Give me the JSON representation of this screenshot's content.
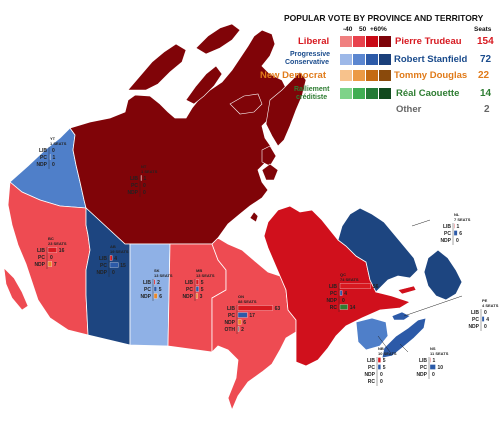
{
  "legend": {
    "title": "POPULAR VOTE BY PROVINCE AND TERRITORY",
    "scale_labels": [
      "-40",
      "50",
      "+60%"
    ],
    "seats_label": "Seats",
    "parties": [
      {
        "name": "Liberal",
        "leader": "Pierre Trudeau",
        "seats": "154",
        "color": "#c80815",
        "text_color": "#d71920",
        "swatches": [
          "#f08080",
          "#e8414c",
          "#c80815",
          "#7d0309"
        ]
      },
      {
        "name": "Progressive Conservative",
        "name_line1": "Progressive",
        "name_line2": "Conservative",
        "leader": "Robert Stanfield",
        "seats": "72",
        "color": "#1a3f7a",
        "text_color": "#1a4b8c",
        "swatches": [
          "#9db8e8",
          "#5b86d0",
          "#2c5aa8",
          "#1a3f7a"
        ]
      },
      {
        "name": "New Democrat",
        "leader": "Tommy Douglas",
        "seats": "22",
        "color": "#e07b1a",
        "text_color": "#e07b1a",
        "swatches": [
          "#f7c28c",
          "#ec9a45",
          "#c46a12",
          "#8a4a0c"
        ]
      },
      {
        "name": "Ralliement créditiste",
        "name_line1": "Ralliement",
        "name_line2": "créditiste",
        "leader": "Réal Caouette",
        "seats": "14",
        "color": "#2e7d32",
        "text_color": "#2e7d32",
        "swatches": [
          "#7ed389",
          "#3fae52",
          "#237a35",
          "#124a1e"
        ]
      },
      {
        "name": "Other",
        "seats": "2",
        "color": "#555555",
        "text_color": "#666666"
      }
    ]
  },
  "regions": [
    {
      "id": "yt",
      "name": "YT",
      "seats_label": "1\nSEATS",
      "rows": [
        [
          "LIB",
          "0"
        ],
        [
          "PC",
          "1"
        ],
        [
          "NDP",
          "0"
        ]
      ]
    },
    {
      "id": "nt",
      "name": "NT",
      "seats_label": "1\nSEATS",
      "rows": [
        [
          "LIB",
          "1"
        ],
        [
          "PC",
          "0"
        ],
        [
          "NDP",
          "0"
        ]
      ]
    },
    {
      "id": "bc",
      "name": "BC",
      "seats_label": "23\nSEATS",
      "rows": [
        [
          "LIB",
          "16"
        ],
        [
          "PC",
          "0"
        ],
        [
          "NDP",
          "7"
        ]
      ]
    },
    {
      "id": "ab",
      "name": "AB",
      "seats_label": "19\nSEATS",
      "rows": [
        [
          "LIB",
          "4"
        ],
        [
          "PC",
          "15"
        ],
        [
          "NDP",
          "0"
        ]
      ]
    },
    {
      "id": "sk",
      "name": "SK",
      "seats_label": "13\nSEATS",
      "rows": [
        [
          "LIB",
          "2"
        ],
        [
          "PC",
          "5"
        ],
        [
          "NDP",
          "6"
        ]
      ]
    },
    {
      "id": "mb",
      "name": "MB",
      "seats_label": "13\nSEATS",
      "rows": [
        [
          "LIB",
          "5"
        ],
        [
          "PC",
          "5"
        ],
        [
          "NDP",
          "3"
        ]
      ]
    },
    {
      "id": "on",
      "name": "ON",
      "seats_label": "88\nSEATS",
      "rows": [
        [
          "LIB",
          "63"
        ],
        [
          "PC",
          "17"
        ],
        [
          "NDP",
          "6"
        ],
        [
          "OTH",
          "2"
        ]
      ]
    },
    {
      "id": "qc",
      "name": "QC",
      "seats_label": "74\nSEATS",
      "rows": [
        [
          "LIB",
          "56"
        ],
        [
          "PC",
          "4"
        ],
        [
          "NDP",
          "0"
        ],
        [
          "RC",
          "14"
        ]
      ]
    },
    {
      "id": "nl",
      "name": "NL",
      "seats_label": "7\nSEATS",
      "rows": [
        [
          "LIB",
          "1"
        ],
        [
          "PC",
          "6"
        ],
        [
          "NDP",
          "0"
        ]
      ]
    },
    {
      "id": "pe",
      "name": "PE",
      "seats_label": "4\nSEATS",
      "rows": [
        [
          "LIB",
          "0"
        ],
        [
          "PC",
          "4"
        ],
        [
          "NDP",
          "0"
        ]
      ]
    },
    {
      "id": "nb",
      "name": "NB",
      "seats_label": "10\nSEATS",
      "rows": [
        [
          "LIB",
          "5"
        ],
        [
          "PC",
          "5"
        ],
        [
          "NDP",
          "0"
        ],
        [
          "RC",
          "0"
        ]
      ]
    },
    {
      "id": "ns",
      "name": "NS",
      "seats_label": "11\nSEATS",
      "rows": [
        [
          "LIB",
          "1"
        ],
        [
          "PC",
          "10"
        ],
        [
          "NDP",
          "0"
        ]
      ]
    }
  ]
}
